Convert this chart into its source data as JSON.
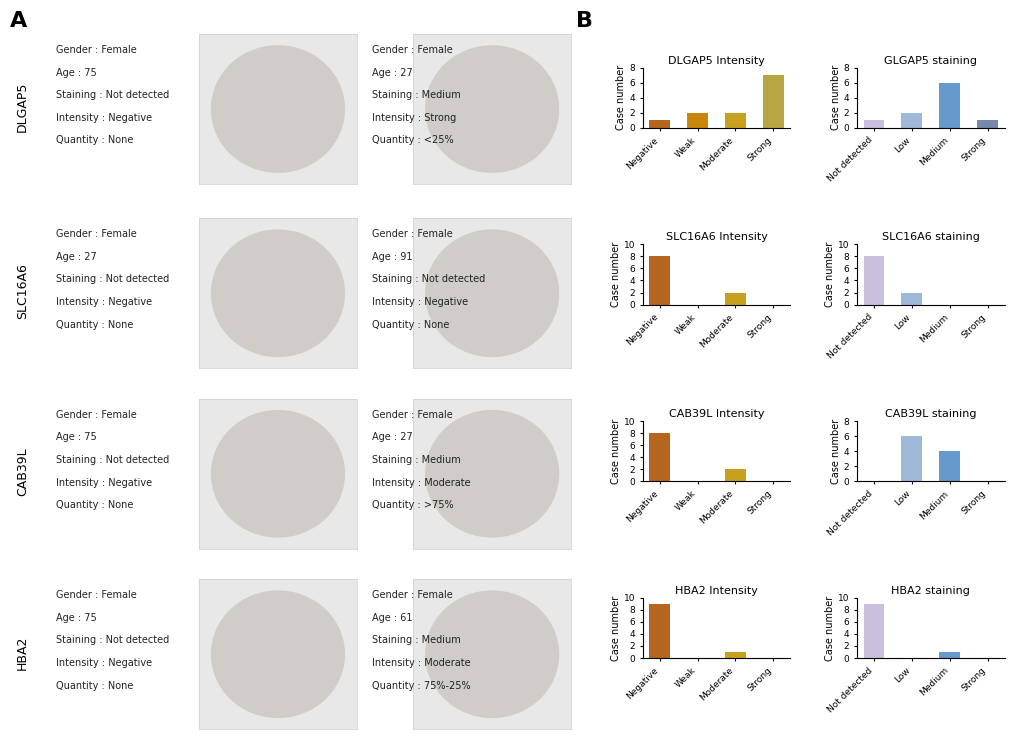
{
  "panel_A_label": "A",
  "panel_B_label": "B",
  "background_color": "#ffffff",
  "ylabel": "Case number",
  "title_fontsize": 8,
  "tick_fontsize": 6.5,
  "label_fontsize": 7,
  "gene_label_fontsize": 9,
  "info_fontsize": 7,
  "gene_labels": [
    "DLGAP5",
    "SLC16A6",
    "CAB39L",
    "HBA2"
  ],
  "normal_info": [
    [
      "Gender : Female",
      "Age : 75",
      "Staining : Not detected",
      "Intensity : Negative",
      "Quantity : None"
    ],
    [
      "Gender : Female",
      "Age : 27",
      "Staining : Not detected",
      "Intensity : Negative",
      "Quantity : None"
    ],
    [
      "Gender : Female",
      "Age : 75",
      "Staining : Not detected",
      "Intensity : Negative",
      "Quantity : None"
    ],
    [
      "Gender : Female",
      "Age : 75",
      "Staining : Not detected",
      "Intensity : Negative",
      "Quantity : None"
    ]
  ],
  "bc_info": [
    [
      "Gender : Female",
      "Age : 27",
      "Staining : Medium",
      "Intensity : Strong",
      "Quantity : <25%"
    ],
    [
      "Gender : Female",
      "Age : 91",
      "Staining : Not detected",
      "Intensity : Negative",
      "Quantity : None"
    ],
    [
      "Gender : Female",
      "Age : 27",
      "Staining : Medium",
      "Intensity : Moderate",
      "Quantity : >75%"
    ],
    [
      "Gender : Female",
      "Age : 61",
      "Staining : Medium",
      "Intensity : Moderate",
      "Quantity : 75%-25%"
    ]
  ],
  "charts": [
    {
      "title": "DLGAP5 Intensity",
      "categories": [
        "Negative",
        "Weak",
        "Moderate",
        "Strong"
      ],
      "values": [
        1,
        2,
        2,
        7
      ],
      "colors": [
        "#b5651d",
        "#c8860a",
        "#c8a020",
        "#b5a642"
      ],
      "ylim": 8,
      "yticks": [
        0,
        2,
        4,
        6,
        8
      ],
      "col": 0,
      "row": 0
    },
    {
      "title": "GLGAP5 staining",
      "categories": [
        "Not detected",
        "Low",
        "Medium",
        "Strong"
      ],
      "values": [
        1,
        2,
        6,
        1
      ],
      "colors": [
        "#c8c0dc",
        "#a0b8d8",
        "#6699cc",
        "#7788aa"
      ],
      "ylim": 8,
      "yticks": [
        0,
        2,
        4,
        6,
        8
      ],
      "col": 1,
      "row": 0
    },
    {
      "title": "SLC16A6 Intensity",
      "categories": [
        "Negative",
        "Weak",
        "Moderate",
        "Strong"
      ],
      "values": [
        8,
        0,
        2,
        0
      ],
      "colors": [
        "#b5651d",
        "#c8860a",
        "#c8a020",
        "#b5a642"
      ],
      "ylim": 10,
      "yticks": [
        0,
        2,
        4,
        6,
        8,
        10
      ],
      "col": 0,
      "row": 1
    },
    {
      "title": "SLC16A6 staining",
      "categories": [
        "Not detected",
        "Low",
        "Medium",
        "Strong"
      ],
      "values": [
        8,
        2,
        0,
        0
      ],
      "colors": [
        "#c8c0dc",
        "#a0b8d8",
        "#6699cc",
        "#7788aa"
      ],
      "ylim": 10,
      "yticks": [
        0,
        2,
        4,
        6,
        8,
        10
      ],
      "col": 1,
      "row": 1
    },
    {
      "title": "CAB39L Intensity",
      "categories": [
        "Negative",
        "Weak",
        "Moderate",
        "Strong"
      ],
      "values": [
        8,
        0,
        2,
        0
      ],
      "colors": [
        "#b5651d",
        "#c8860a",
        "#c8a020",
        "#b5a642"
      ],
      "ylim": 10,
      "yticks": [
        0,
        2,
        4,
        6,
        8,
        10
      ],
      "col": 0,
      "row": 2
    },
    {
      "title": "CAB39L staining",
      "categories": [
        "Not detected",
        "Low",
        "Medium",
        "Strong"
      ],
      "values": [
        0,
        6,
        4,
        0
      ],
      "colors": [
        "#c8c0dc",
        "#a0b8d8",
        "#6699cc",
        "#7788aa"
      ],
      "ylim": 8,
      "yticks": [
        0,
        2,
        4,
        6,
        8
      ],
      "col": 1,
      "row": 2
    },
    {
      "title": "HBA2 Intensity",
      "categories": [
        "Negative",
        "Weak",
        "Moderate",
        "Strong"
      ],
      "values": [
        9,
        0,
        1,
        0
      ],
      "colors": [
        "#b5651d",
        "#c8860a",
        "#c8a020",
        "#b5a642"
      ],
      "ylim": 10,
      "yticks": [
        0,
        2,
        4,
        6,
        8,
        10
      ],
      "col": 0,
      "row": 3
    },
    {
      "title": "HBA2 staining",
      "categories": [
        "Not detected",
        "Low",
        "Medium",
        "Strong"
      ],
      "values": [
        9,
        0,
        1,
        0
      ],
      "colors": [
        "#c8c0dc",
        "#a0b8d8",
        "#6699cc",
        "#7788aa"
      ],
      "ylim": 10,
      "yticks": [
        0,
        2,
        4,
        6,
        8,
        10
      ],
      "col": 1,
      "row": 3
    }
  ]
}
